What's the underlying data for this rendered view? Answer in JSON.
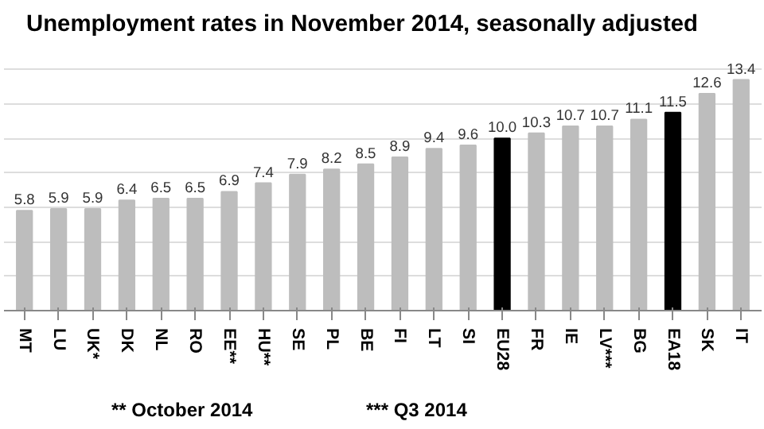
{
  "chart_data": {
    "type": "bar",
    "title": "Unemployment rates in November 2014, seasonally adjusted",
    "categories": [
      "MT",
      "LU",
      "UK*",
      "DK",
      "NL",
      "RO",
      "EE**",
      "HU**",
      "SE",
      "PL",
      "BE",
      "FI",
      "LT",
      "SI",
      "EU28",
      "FR",
      "IE",
      "LV***",
      "BG",
      "EA18",
      "SK",
      "IT"
    ],
    "values": [
      5.8,
      5.9,
      5.9,
      6.4,
      6.5,
      6.5,
      6.9,
      7.4,
      7.9,
      8.2,
      8.5,
      8.9,
      9.4,
      9.6,
      10.0,
      10.3,
      10.7,
      10.7,
      11.1,
      11.5,
      12.6,
      13.4
    ],
    "colors": [
      "#bdbdbd",
      "#bdbdbd",
      "#bdbdbd",
      "#bdbdbd",
      "#bdbdbd",
      "#bdbdbd",
      "#bdbdbd",
      "#bdbdbd",
      "#bdbdbd",
      "#bdbdbd",
      "#bdbdbd",
      "#bdbdbd",
      "#bdbdbd",
      "#bdbdbd",
      "#000000",
      "#bdbdbd",
      "#bdbdbd",
      "#bdbdbd",
      "#bdbdbd",
      "#000000",
      "#bdbdbd",
      "#bdbdbd"
    ],
    "value_labels": [
      "5.8",
      "5.9",
      "5.9",
      "6.4",
      "6.5",
      "6.5",
      "6.9",
      "7.4",
      "7.9",
      "8.2",
      "8.5",
      "8.9",
      "9.4",
      "9.6",
      "10.0",
      "10.3",
      "10.7",
      "10.7",
      "11.1",
      "11.5",
      "12.6",
      "13.4"
    ],
    "grid": "y",
    "tick_labels": "x",
    "annotations": [
      "** October 2014",
      "*** Q3 2014"
    ]
  }
}
